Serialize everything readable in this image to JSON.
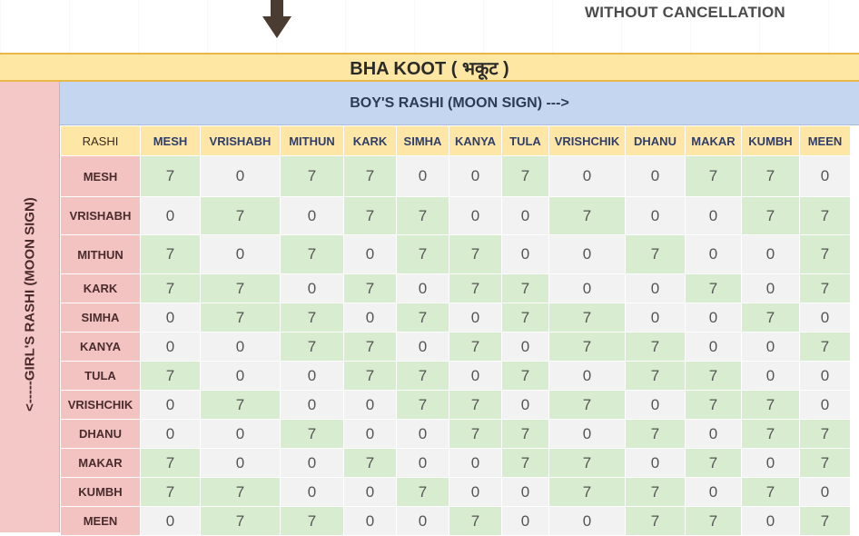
{
  "header": {
    "arrow_icon": "down-arrow-icon",
    "subtitle": "WITHOUT CANCELLATION"
  },
  "table": {
    "title": "BHA KOOT ( भकूट )",
    "column_group_label": "BOY'S RASHI (MOON SIGN) --->",
    "row_group_label": "<-----GIRL'S RASHI (MOON SIGN)",
    "corner_label": "RASHI",
    "columns": [
      "MESH",
      "VRISHABH",
      "MITHUN",
      "KARK",
      "SIMHA",
      "KANYA",
      "TULA",
      "VRISHCHIK",
      "DHANU",
      "MAKAR",
      "KUMBH",
      "MEEN"
    ],
    "rows": [
      {
        "label": "MESH",
        "values": [
          "7",
          "0",
          "7",
          "7",
          "0",
          "0",
          "7",
          "0",
          "0",
          "7",
          "7",
          "0"
        ]
      },
      {
        "label": "VRISHABH",
        "values": [
          "0",
          "7",
          "0",
          "7",
          "7",
          "0",
          "0",
          "7",
          "0",
          "0",
          "7",
          "7"
        ]
      },
      {
        "label": "MITHUN",
        "values": [
          "7",
          "0",
          "7",
          "0",
          "7",
          "7",
          "0",
          "0",
          "7",
          "0",
          "0",
          "7"
        ]
      },
      {
        "label": "KARK",
        "values": [
          "7",
          "7",
          "0",
          "7",
          "0",
          "7",
          "7",
          "0",
          "0",
          "7",
          "0",
          "7"
        ]
      },
      {
        "label": "SIMHA",
        "values": [
          "0",
          "7",
          "7",
          "0",
          "7",
          "0",
          "7",
          "7",
          "0",
          "0",
          "7",
          "0"
        ]
      },
      {
        "label": "KANYA",
        "values": [
          "0",
          "0",
          "7",
          "7",
          "0",
          "7",
          "0",
          "7",
          "7",
          "0",
          "0",
          "7"
        ]
      },
      {
        "label": "TULA",
        "values": [
          "7",
          "0",
          "0",
          "7",
          "7",
          "0",
          "7",
          "0",
          "7",
          "7",
          "0",
          "0"
        ]
      },
      {
        "label": "VRISHCHIK",
        "values": [
          "0",
          "7",
          "0",
          "0",
          "7",
          "7",
          "0",
          "7",
          "0",
          "7",
          "7",
          "0"
        ]
      },
      {
        "label": "DHANU",
        "values": [
          "0",
          "0",
          "7",
          "0",
          "0",
          "7",
          "7",
          "0",
          "7",
          "0",
          "7",
          "7"
        ]
      },
      {
        "label": "MAKAR",
        "values": [
          "7",
          "0",
          "0",
          "7",
          "0",
          "0",
          "7",
          "7",
          "0",
          "7",
          "0",
          "7"
        ]
      },
      {
        "label": "KUMBH",
        "values": [
          "7",
          "7",
          "0",
          "0",
          "7",
          "0",
          "0",
          "7",
          "7",
          "0",
          "7",
          "0"
        ]
      },
      {
        "label": "MEEN",
        "values": [
          "0",
          "7",
          "7",
          "0",
          "0",
          "7",
          "0",
          "0",
          "7",
          "7",
          "0",
          "7"
        ]
      }
    ]
  },
  "colors": {
    "title_bg": "#fde7a2",
    "boy_header_bg": "#c5d7f0",
    "girl_col_bg": "#f3c8c6",
    "cell_seven_bg": "#d8ecd0",
    "cell_zero_bg": "#f2f2f2"
  }
}
